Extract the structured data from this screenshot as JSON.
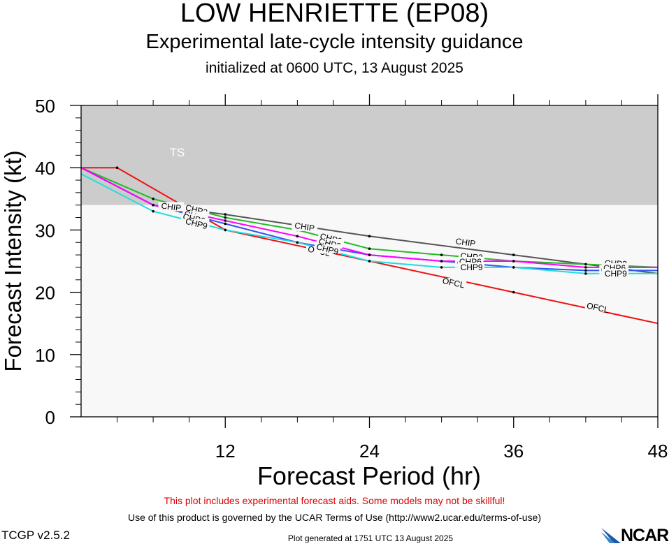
{
  "header": {
    "title": "LOW HENRIETTE (EP08)",
    "subtitle": "Experimental late-cycle intensity guidance",
    "init": "initialized at 0600 UTC, 13 August 2025"
  },
  "footer": {
    "warning": "This plot includes experimental forecast aids. Some models may not be skillful!",
    "terms": "Use of this product is governed by the UCAR Terms of Use (http://www2.ucar.edu/terms-of-use)",
    "version": "TCGP v2.5.2",
    "generated": "Plot generated at 1751 UTC   13 August 2025",
    "logo_text": "NCAR"
  },
  "chart_data": {
    "type": "line",
    "xlabel": "Forecast Period (hr)",
    "ylabel": "Forecast Intensity (kt)",
    "xlim": [
      0,
      48
    ],
    "ylim": [
      0,
      50
    ],
    "xticks": [
      12,
      24,
      36,
      48
    ],
    "yticks": [
      0,
      10,
      20,
      30,
      40,
      50
    ],
    "bands": [
      {
        "label": "TS",
        "from": 34,
        "to": 50,
        "color": "#cccccc"
      },
      {
        "label": "",
        "from": 0,
        "to": 34,
        "color": "#f8f8f8"
      }
    ],
    "series": [
      {
        "name": "OFCL",
        "color": "#ee1111",
        "x": [
          0,
          3,
          12,
          24,
          36,
          48
        ],
        "y": [
          40,
          40,
          30,
          25,
          20,
          15
        ],
        "labels": [
          [
            19.8,
            26.6
          ],
          [
            31,
            21.5
          ],
          [
            43,
            17.5
          ]
        ]
      },
      {
        "name": "CHIP",
        "color": "#555555",
        "x": [
          0,
          6,
          12,
          24,
          36,
          48
        ],
        "y": [
          40,
          34,
          32.5,
          29,
          26,
          23
        ],
        "labels": [
          [
            7.5,
            33.7
          ],
          [
            18.6,
            30.5
          ],
          [
            32,
            28
          ]
        ]
      },
      {
        "name": "CHP2",
        "color": "#22bb22",
        "x": [
          0,
          6,
          12,
          18,
          24,
          30,
          36,
          42,
          48
        ],
        "y": [
          40,
          35,
          32,
          30,
          27,
          26,
          25,
          24.5,
          24
        ],
        "labels": [
          [
            9.6,
            33.2
          ],
          [
            20.8,
            28.6
          ],
          [
            32.5,
            25.7
          ],
          [
            44.5,
            24.6
          ]
        ]
      },
      {
        "name": "CHP4",
        "color": "#3355ee",
        "x": [
          0,
          6,
          12,
          18,
          24,
          30,
          36,
          42,
          48
        ],
        "y": [
          40,
          34,
          31,
          28,
          26,
          25,
          24,
          23.5,
          23.5
        ],
        "labels": [
          [
            9.5,
            32.2
          ],
          [
            20.5,
            27.4
          ],
          [
            32.2,
            24.6
          ],
          [
            44.2,
            23.6
          ]
        ]
      },
      {
        "name": "CHP6",
        "color": "#ff00ff",
        "x": [
          0,
          6,
          12,
          18,
          24,
          30,
          36,
          42,
          48
        ],
        "y": [
          40,
          34,
          31.5,
          29,
          26,
          25,
          25,
          24,
          24
        ],
        "labels": [
          [
            9.4,
            31.8
          ],
          [
            20.7,
            27.8
          ],
          [
            32.4,
            24.9
          ],
          [
            44.4,
            23.9
          ]
        ]
      },
      {
        "name": "CHP9",
        "color": "#22dddd",
        "x": [
          0,
          6,
          12,
          18,
          24,
          30,
          36,
          42,
          48
        ],
        "y": [
          39,
          33,
          30,
          28,
          25,
          24,
          24,
          23,
          23
        ],
        "labels": [
          [
            9.6,
            31
          ],
          [
            20.5,
            26.9
          ],
          [
            32.5,
            24
          ],
          [
            44.5,
            23
          ]
        ]
      }
    ]
  }
}
